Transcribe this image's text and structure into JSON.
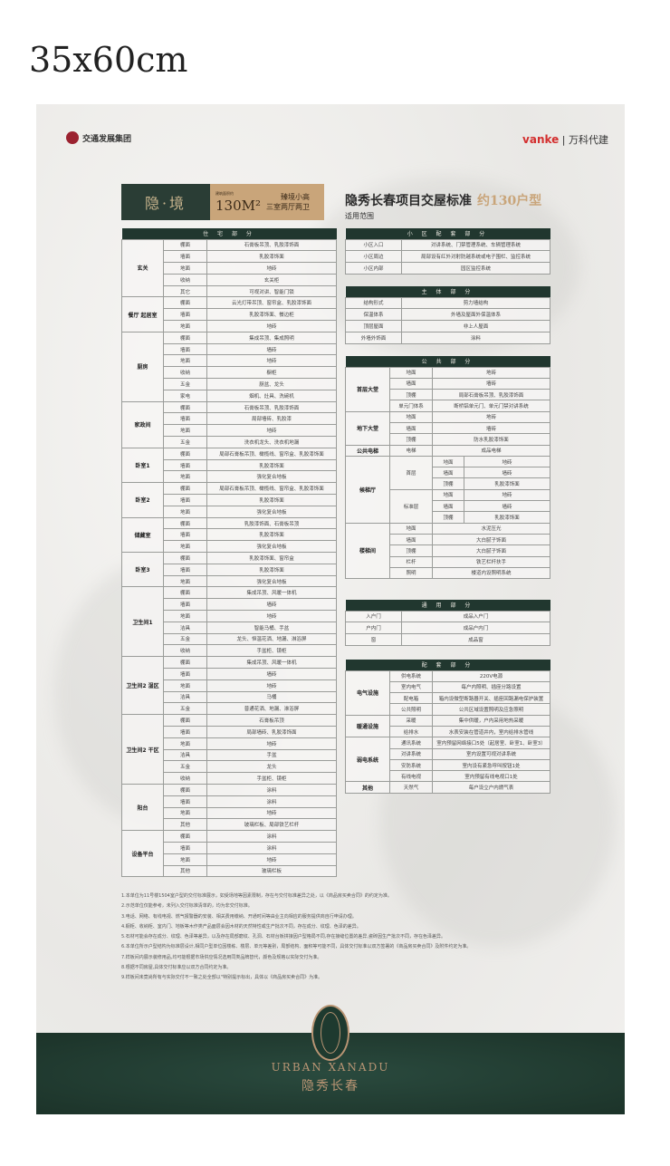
{
  "size_label": "35x60cm",
  "logos": {
    "left": "交通发展集团",
    "right_brand": "vanke",
    "right_text": "万科代建"
  },
  "header_box": {
    "name": "隐·境",
    "area_label": "建筑面积约",
    "area": "130M²",
    "line1": "臻境小高",
    "line2": "三室两厅两卫"
  },
  "title": {
    "main": "隐秀长春项目交屋标准",
    "type": "约130户型",
    "scope": "适用范围"
  },
  "colors": {
    "green": "#21372f",
    "gold": "#c9a57a",
    "vanke_red": "#d32e2e"
  },
  "tables": {
    "home": {
      "title": "住 宅 部 分",
      "rows": [
        [
          {
            "t": "玄关",
            "rs": 5,
            "b": 1
          },
          "棚面",
          "石膏板吊顶、乳胶漆饰面"
        ],
        [
          "墙面",
          "乳胶漆饰面"
        ],
        [
          "地面",
          "地砖"
        ],
        [
          "收纳",
          "玄关柜"
        ],
        [
          "其它",
          "可视对讲、智能门锁"
        ],
        [
          {
            "t": "餐厅 起居室",
            "rs": 3,
            "b": 1
          },
          "棚面",
          "云光灯带吊顶、窗帘盒、乳胶漆饰面"
        ],
        [
          "墙面",
          "乳胶漆饰面、餐边柜"
        ],
        [
          "地面",
          "地砖"
        ],
        [
          {
            "t": "厨房",
            "rs": 6,
            "b": 1
          },
          "棚面",
          "集成吊顶、集成照明"
        ],
        [
          "墙面",
          "墙砖"
        ],
        [
          "地面",
          "地砖"
        ],
        [
          "收纳",
          "橱柜"
        ],
        [
          "五金",
          "厨盆、龙头"
        ],
        [
          "家电",
          "烟机、灶具、洗碗机"
        ],
        [
          {
            "t": "家政间",
            "rs": 4,
            "b": 1
          },
          "棚面",
          "石膏板吊顶、乳胶漆饰面"
        ],
        [
          "墙面",
          "局部墙砖、乳胶漆"
        ],
        [
          "地面",
          "地砖"
        ],
        [
          "五金",
          "洗衣机龙头、洗衣机地漏"
        ],
        [
          {
            "t": "卧室1",
            "rs": 3,
            "b": 1
          },
          "棚面",
          "局部石膏板吊顶、橄榄线、窗帘盒、乳胶漆饰面"
        ],
        [
          "墙面",
          "乳胶漆饰面"
        ],
        [
          "地面",
          "强化复合地板"
        ],
        [
          {
            "t": "卧室2",
            "rs": 3,
            "b": 1
          },
          "棚面",
          "局部石膏板吊顶、橄榄线、窗帘盒、乳胶漆饰面"
        ],
        [
          "墙面",
          "乳胶漆饰面"
        ],
        [
          "地面",
          "强化复合地板"
        ],
        [
          {
            "t": "储藏室",
            "rs": 3,
            "b": 1
          },
          "棚面",
          "乳胶漆饰面、石膏板吊顶"
        ],
        [
          "墙面",
          "乳胶漆饰面"
        ],
        [
          "地面",
          "强化复合地板"
        ],
        [
          {
            "t": "卧室3",
            "rs": 3,
            "b": 1
          },
          "棚面",
          "乳胶漆饰面、窗帘盒"
        ],
        [
          "墙面",
          "乳胶漆饰面"
        ],
        [
          "地面",
          "强化复合地板"
        ],
        [
          {
            "t": "卫生间1",
            "rs": 6,
            "b": 1
          },
          "棚面",
          "集成吊顶、风暖一体机"
        ],
        [
          "墙面",
          "墙砖"
        ],
        [
          "地面",
          "地砖"
        ],
        [
          "洁具",
          "智能马桶、手盆"
        ],
        [
          "五金",
          "龙头、恒温花洒、地漏、淋浴屏"
        ],
        [
          "收纳",
          "手盆柜、镜柜"
        ],
        [
          {
            "t": "卫生间2 湿区",
            "rs": 5,
            "b": 1
          },
          "棚面",
          "集成吊顶、风暖一体机"
        ],
        [
          "墙面",
          "墙砖"
        ],
        [
          "地面",
          "地砖"
        ],
        [
          "洁具",
          "马桶"
        ],
        [
          "五金",
          "普通花洒、地漏、淋浴屏"
        ],
        [
          {
            "t": "卫生间2 干区",
            "rs": 6,
            "b": 1
          },
          "棚面",
          "石膏板吊顶"
        ],
        [
          "墙面",
          "局部墙砖、乳胶漆饰面"
        ],
        [
          "地面",
          "地砖"
        ],
        [
          "洁具",
          "手盆"
        ],
        [
          "五金",
          "龙头"
        ],
        [
          "收纳",
          "手盆柜、镜柜"
        ],
        [
          {
            "t": "阳台",
            "rs": 4,
            "b": 1
          },
          "棚面",
          "涂料"
        ],
        [
          "墙面",
          "涂料"
        ],
        [
          "地面",
          "地砖"
        ],
        [
          "其他",
          "玻璃栏板、局部铁艺栏杆"
        ],
        [
          {
            "t": "设备平台",
            "rs": 4,
            "b": 1
          },
          "棚面",
          "涂料"
        ],
        [
          "墙面",
          "涂料"
        ],
        [
          "地面",
          "地砖"
        ],
        [
          "其他",
          "玻璃栏板"
        ]
      ]
    },
    "community": {
      "title": "小 区 配 套 部 分",
      "rows": [
        [
          "小区入口",
          "对讲系统、门禁管理系统、车辆管理系统"
        ],
        [
          "小区周边",
          "局部设有红外对射防越系统或电子围栏、监控系统"
        ],
        [
          "小区内部",
          "园区监控系统"
        ]
      ]
    },
    "main": {
      "title": "主 体 部 分",
      "rows": [
        [
          "结构形式",
          "剪力墙结构"
        ],
        [
          "保温体系",
          "外墙及屋面外保温体系"
        ],
        [
          "顶层屋面",
          "非上人屋面"
        ],
        [
          "外墙外饰面",
          "涂料"
        ]
      ]
    },
    "public": {
      "title": "公 共 部 分",
      "rows": [
        [
          {
            "t": "首层大堂",
            "rs": 4,
            "b": 1
          },
          "地面",
          {
            "t": "地砖",
            "cs": 2
          }
        ],
        [
          "墙面",
          {
            "t": "墙砖",
            "cs": 2
          }
        ],
        [
          "顶棚",
          {
            "t": "局部石膏板吊顶、乳胶漆饰面",
            "cs": 2
          }
        ],
        [
          "单元门体系",
          {
            "t": "断桥铝单元门、单元门禁对讲系统",
            "cs": 2
          }
        ],
        [
          {
            "t": "地下大堂",
            "rs": 3,
            "b": 1
          },
          "地面",
          {
            "t": "地砖",
            "cs": 2
          }
        ],
        [
          "墙面",
          {
            "t": "墙砖",
            "cs": 2
          }
        ],
        [
          "顶棚",
          {
            "t": "防水乳胶漆饰面",
            "cs": 2
          }
        ],
        [
          {
            "t": "公共电梯",
            "b": 1
          },
          "电梯",
          {
            "t": "成品电梯",
            "cs": 2
          }
        ],
        [
          {
            "t": "候梯厅",
            "rs": 6,
            "b": 1
          },
          {
            "t": "首层",
            "rs": 3
          },
          "地面",
          "地砖"
        ],
        [
          "墙面",
          "墙砖"
        ],
        [
          "顶棚",
          "乳胶漆饰面"
        ],
        [
          {
            "t": "标准层",
            "rs": 3
          },
          "地面",
          "地砖"
        ],
        [
          "墙面",
          "墙砖"
        ],
        [
          "顶棚",
          "乳胶漆饰面"
        ],
        [
          {
            "t": "楼梯间",
            "rs": 5,
            "b": 1
          },
          "地面",
          {
            "t": "水泥压光",
            "cs": 2
          }
        ],
        [
          "墙面",
          {
            "t": "大白腻子饰面",
            "cs": 2
          }
        ],
        [
          "顶棚",
          {
            "t": "大白腻子饰面",
            "cs": 2
          }
        ],
        [
          "栏杆",
          {
            "t": "铁艺栏杆扶手",
            "cs": 2
          }
        ],
        [
          "照明",
          {
            "t": "楼道内设照明系统",
            "cs": 2
          }
        ]
      ]
    },
    "common": {
      "title": "通 用 部 分",
      "rows": [
        [
          "入户门",
          "成品入户门"
        ],
        [
          "户内门",
          "成品户内门"
        ],
        [
          "窗",
          "成品窗"
        ]
      ]
    },
    "support": {
      "title": "配 套 部 分",
      "rows": [
        [
          {
            "t": "电气设施",
            "rs": 4,
            "b": 1
          },
          "供电系统",
          "220V电源"
        ],
        [
          "室内电气",
          "每户内照明、插座分路设置"
        ],
        [
          "配电箱",
          "箱内设微型断路器开关、插座回路漏电保护装置"
        ],
        [
          "公共照明",
          "公共区域设置照明及应急照明"
        ],
        [
          {
            "t": "暖通设施",
            "rs": 2,
            "b": 1
          },
          "采暖",
          "集中供暖，户内采用地热采暖"
        ],
        [
          "给排水",
          "水表安装在管道井内，室内给排水管线"
        ],
        [
          {
            "t": "弱电系统",
            "rs": 4,
            "b": 1
          },
          "通讯系统",
          "室内预留网络接口5处（起居室、卧室1、卧室3）"
        ],
        [
          "对讲系统",
          "室内设置可视对讲系统"
        ],
        [
          "安防系统",
          "室内设有紧急呼叫按钮1处"
        ],
        [
          "有线电视",
          "室内预留有线电视口1处"
        ],
        [
          {
            "t": "其他",
            "b": 1
          },
          "天然气",
          "每户设立户内燃气表"
        ]
      ]
    }
  },
  "notes": [
    "1.本单位为11号楼1504室户型的交付标准展示，如受场地等因素限制，存在与交付标准差异之处，以《商品房买卖合同》的约定为准。",
    "2.示范单位仅能参考，未列入交付标准清单的，均为非交付标准。",
    "3.电话、网络、有线电视、燃气报警器的安装、相关费用缴纳、开通时间等由业主向相应的服务提供商自行申请办理。",
    "4.橱柜、收纳柜、室内门、地板等木作类产品面层会因木材的天然特性或生产批次不同，存在成分、纹理、色泽的差异。",
    "5.石材可能会存在成分、纹理、色泽等差异，以及存在局部磨纹、孔洞、石材台板拼接因户型格局不同,存在接缝位置的差异,瓷砖因生产批次不同，存在色泽差异。",
    "6.本单位所示户型结构为标准层设计,相同户型单位因楼栋、楼层、单元等差别，局部结构、面积等可能不同，具体交付标准以双方签署的《商品房买卖合同》及附件约定为准。",
    "7.样板间内展示装修用品,均可能根据市场供应情况选用同类品牌替代，颜色及规格以实际交付为准。",
    "8.根据不同房屋,具体交付标准应以双方合同约定为准。",
    "9.样板间未竟尚所有与实际交付不一致之处全部以\"特别提示标出，具体以《商品房买卖合同》为准。"
  ],
  "brand": {
    "en": "URBAN XANADU",
    "cn": "隐秀长春"
  }
}
